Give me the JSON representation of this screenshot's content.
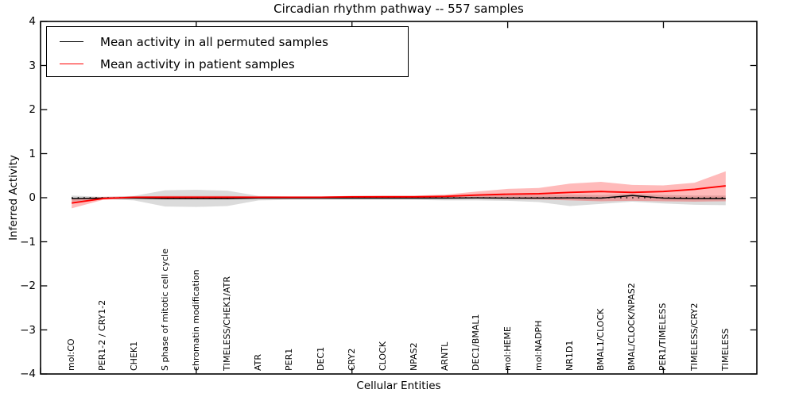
{
  "title": "Circadian rhythm pathway -- 557 samples",
  "axes": {
    "ylabel": "Inferred Activity",
    "xlabel": "Cellular Entities",
    "yticks": [
      4,
      3,
      2,
      1,
      0,
      -1,
      -2,
      -3,
      -4
    ],
    "ytick_labels": [
      "4",
      "3",
      "2",
      "1",
      "0",
      "−1",
      "−2",
      "−3",
      "−4"
    ]
  },
  "legend": {
    "items": [
      {
        "label": "Mean activity in all permuted samples",
        "color": "#000000"
      },
      {
        "label": "Mean activity in patient samples",
        "color": "#ff0000"
      }
    ]
  },
  "chart_data": {
    "type": "line",
    "title": "Circadian rhythm pathway -- 557 samples",
    "xlabel": "Cellular Entities",
    "ylabel": "Inferred Activity",
    "ylim": [
      -4,
      4
    ],
    "xlim": [
      0,
      23
    ],
    "xticks": [
      0,
      5,
      10,
      15,
      20
    ],
    "grid": false,
    "legend_position": "upper left",
    "zero_line": "dotted",
    "categories": [
      "mol:CO",
      "PER1-2 / CRY1-2",
      "CHEK1",
      "S phase of mitotic cell cycle",
      "chromatin modification",
      "TIMELESS/CHEK1/ATR",
      "ATR",
      "PER1",
      "DEC1",
      "CRY2",
      "CLOCK",
      "NPAS2",
      "ARNTL",
      "DEC1/BMAL1",
      "mol:HEME",
      "mol:NADPH",
      "NR1D1",
      "BMAL1/CLOCK",
      "BMAL/CLOCK/NPAS2",
      "PER1/TIMELESS",
      "TIMELESS/CRY2",
      "TIMELESS"
    ],
    "series": [
      {
        "name": "Mean activity in all permuted samples",
        "color": "#000000",
        "band_color": "rgba(0,0,0,0.14)",
        "values": [
          -0.02,
          -0.01,
          -0.01,
          -0.02,
          -0.02,
          -0.02,
          -0.01,
          -0.01,
          -0.01,
          -0.01,
          -0.01,
          -0.01,
          -0.01,
          -0.005,
          -0.01,
          -0.01,
          -0.005,
          -0.01,
          0.05,
          -0.01,
          -0.02,
          -0.02
        ],
        "band_low": [
          -0.09,
          -0.03,
          -0.06,
          -0.2,
          -0.21,
          -0.19,
          -0.06,
          -0.05,
          -0.05,
          -0.05,
          -0.05,
          -0.05,
          -0.06,
          -0.06,
          -0.07,
          -0.1,
          -0.19,
          -0.14,
          -0.09,
          -0.13,
          -0.16,
          -0.17
        ],
        "band_high": [
          0.05,
          0.02,
          0.04,
          0.17,
          0.18,
          0.16,
          0.04,
          0.03,
          0.03,
          0.04,
          0.04,
          0.04,
          0.05,
          0.05,
          0.06,
          0.06,
          0.07,
          0.06,
          0.09,
          0.06,
          0.05,
          0.05
        ]
      },
      {
        "name": "Mean activity in patient samples",
        "color": "#ff0000",
        "band_color": "rgba(255,0,0,0.27)",
        "values": [
          -0.12,
          -0.02,
          0.01,
          0.01,
          0.01,
          0.01,
          0.01,
          0.01,
          0.01,
          0.02,
          0.02,
          0.02,
          0.03,
          0.06,
          0.08,
          0.09,
          0.12,
          0.14,
          0.12,
          0.14,
          0.19,
          0.27
        ],
        "band_low": [
          -0.24,
          -0.05,
          -0.01,
          -0.01,
          -0.01,
          -0.01,
          -0.01,
          -0.01,
          -0.01,
          -0.01,
          -0.01,
          -0.01,
          -0.02,
          -0.02,
          -0.03,
          -0.04,
          -0.06,
          -0.08,
          -0.07,
          -0.08,
          -0.09,
          -0.08
        ],
        "band_high": [
          -0.02,
          0.02,
          0.03,
          0.04,
          0.04,
          0.04,
          0.03,
          0.03,
          0.03,
          0.04,
          0.05,
          0.05,
          0.07,
          0.14,
          0.2,
          0.22,
          0.32,
          0.36,
          0.29,
          0.28,
          0.34,
          0.6
        ]
      }
    ]
  }
}
